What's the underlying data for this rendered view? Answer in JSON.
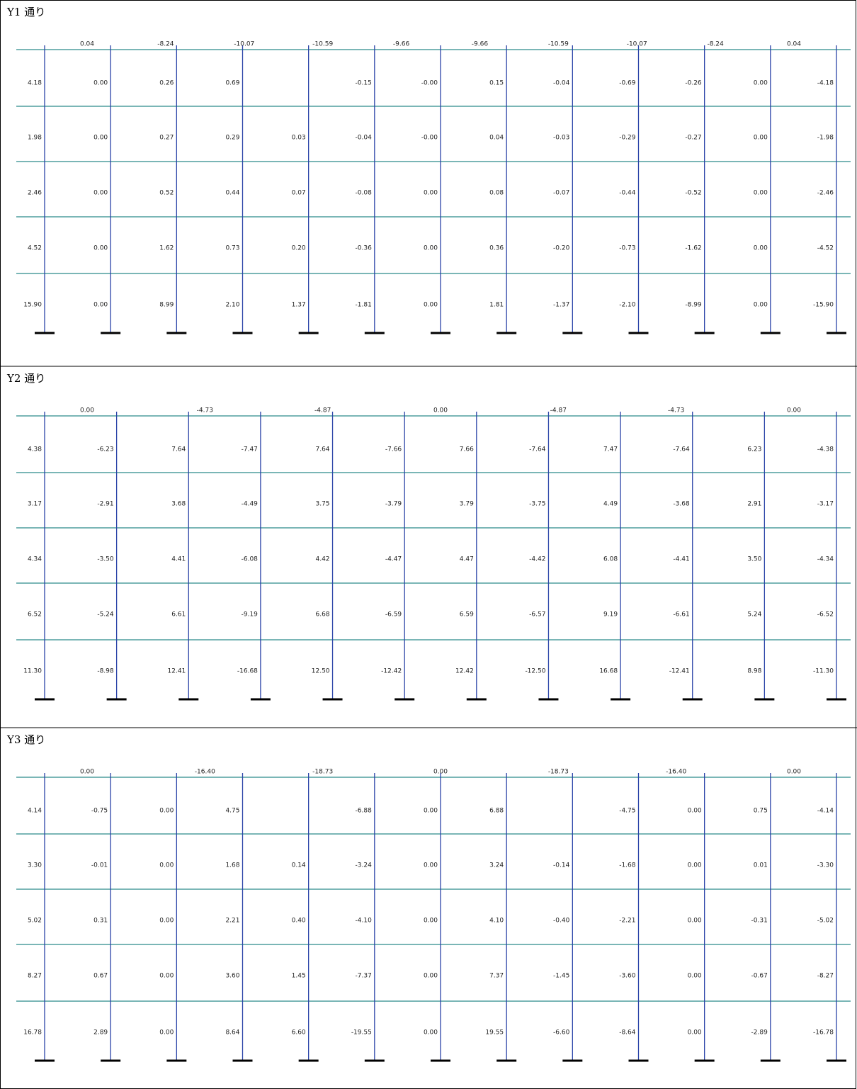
{
  "panels": [
    {
      "title": "Y1 通り",
      "beam_top": [
        "0.04",
        "-8.24",
        "-10.07",
        "-10.59",
        "-9.66",
        "-9.66",
        "-10.59",
        "-10.07",
        "-8.24",
        "0.04"
      ],
      "column_shear": [
        [
          "4.18",
          "0.00",
          "0.26",
          "0.69",
          null,
          "-0.15",
          "-0.00",
          "0.15",
          "-0.04",
          "-0.69",
          "-0.26",
          "0.00",
          "-4.18"
        ],
        [
          "1.98",
          "0.00",
          "0.27",
          "0.29",
          "0.03",
          "-0.04",
          "-0.00",
          "0.04",
          "-0.03",
          "-0.29",
          "-0.27",
          "0.00",
          "-1.98"
        ],
        [
          "2.46",
          "0.00",
          "0.52",
          "0.44",
          "0.07",
          "-0.08",
          "0.00",
          "0.08",
          "-0.07",
          "-0.44",
          "-0.52",
          "0.00",
          "-2.46"
        ],
        [
          "4.52",
          "0.00",
          "1.62",
          "0.73",
          "0.20",
          "-0.36",
          "0.00",
          "0.36",
          "-0.20",
          "-0.73",
          "-1.62",
          "0.00",
          "-4.52"
        ],
        [
          "15.90",
          "0.00",
          "8.99",
          "2.10",
          "1.37",
          "-1.81",
          "0.00",
          "1.81",
          "-1.37",
          "-2.10",
          "-8.99",
          "0.00",
          "-15.90"
        ]
      ]
    },
    {
      "title": "Y2 通り",
      "beam_top": [
        "0.00",
        "-4.73",
        "-4.87",
        "0.00",
        "-4.87",
        "-4.73",
        "0.00"
      ],
      "column_shear": [
        [
          "4.38",
          "-6.23",
          "7.64",
          "-7.47",
          "7.64",
          "-7.66",
          "7.66",
          "-7.64",
          "7.47",
          "-7.64",
          "6.23",
          "-4.38"
        ],
        [
          "3.17",
          "-2.91",
          "3.68",
          "-4.49",
          "3.75",
          "-3.79",
          "3.79",
          "-3.75",
          "4.49",
          "-3.68",
          "2.91",
          "-3.17"
        ],
        [
          "4.34",
          "-3.50",
          "4.41",
          "-6.08",
          "4.42",
          "-4.47",
          "4.47",
          "-4.42",
          "6.08",
          "-4.41",
          "3.50",
          "-4.34"
        ],
        [
          "6.52",
          "-5.24",
          "6.61",
          "-9.19",
          "6.68",
          "-6.59",
          "6.59",
          "-6.57",
          "9.19",
          "-6.61",
          "5.24",
          "-6.52"
        ],
        [
          "11.30",
          "-8.98",
          "12.41",
          "-16.68",
          "12.50",
          "-12.42",
          "12.42",
          "-12.50",
          "16.68",
          "-12.41",
          "8.98",
          "-11.30"
        ]
      ]
    },
    {
      "title": "Y3 通り",
      "beam_top": [
        "0.00",
        "-16.40",
        "-18.73",
        "0.00",
        "-18.73",
        "-16.40",
        "0.00"
      ],
      "column_shear": [
        [
          "4.14",
          "-0.75",
          "0.00",
          "4.75",
          null,
          "-6.88",
          "0.00",
          "6.88",
          null,
          "-4.75",
          "0.00",
          "0.75",
          "-4.14"
        ],
        [
          "3.30",
          "-0.01",
          "0.00",
          "1.68",
          "0.14",
          "-3.24",
          "0.00",
          "3.24",
          "-0.14",
          "-1.68",
          "0.00",
          "0.01",
          "-3.30"
        ],
        [
          "5.02",
          "0.31",
          "0.00",
          "2.21",
          "0.40",
          "-4.10",
          "0.00",
          "4.10",
          "-0.40",
          "-2.21",
          "0.00",
          "-0.31",
          "-5.02"
        ],
        [
          "8.27",
          "0.67",
          "0.00",
          "3.60",
          "1.45",
          "-7.37",
          "0.00",
          "7.37",
          "-1.45",
          "-3.60",
          "0.00",
          "-0.67",
          "-8.27"
        ],
        [
          "16.78",
          "2.89",
          "0.00",
          "8.64",
          "6.60",
          "-19.55",
          "0.00",
          "19.55",
          "-6.60",
          "-8.64",
          "0.00",
          "-2.89",
          "-16.78"
        ]
      ]
    }
  ]
}
